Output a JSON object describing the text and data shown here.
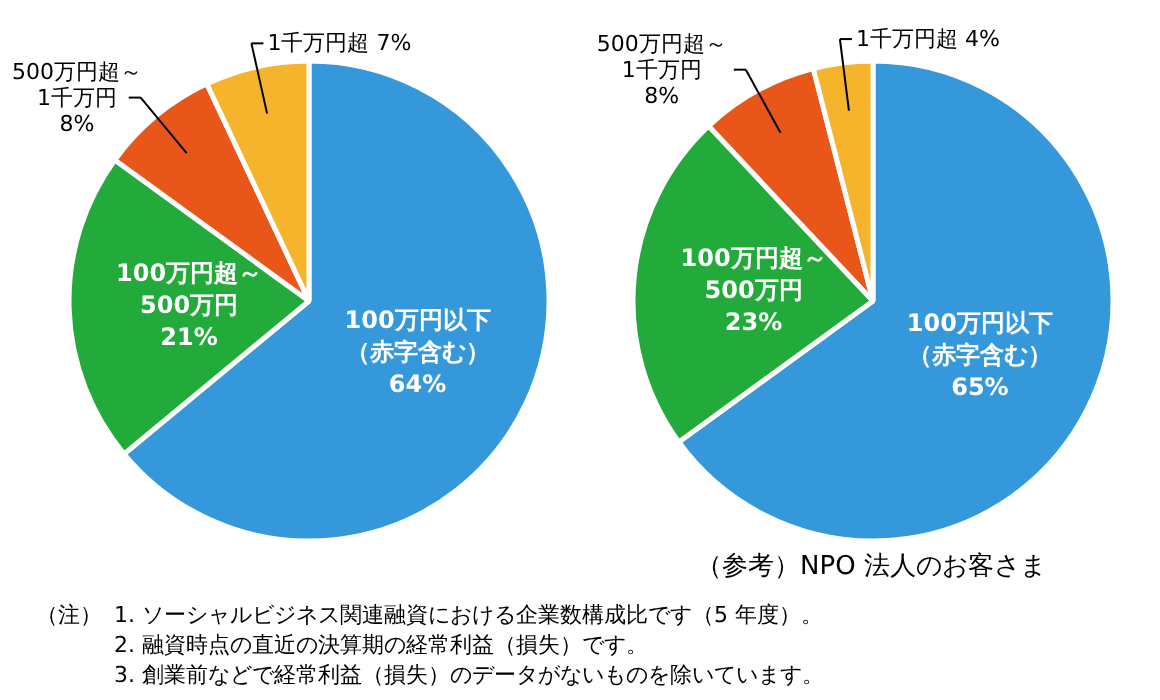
{
  "chart_data": [
    {
      "type": "pie",
      "categories": [
        "100万円以下（赤字含む）",
        "100万円超～500万円",
        "500万円超～1千万円",
        "1千万円超"
      ],
      "values": [
        64,
        21,
        8,
        7
      ],
      "value_labels": [
        "64%",
        "21%",
        "8%",
        "7%"
      ],
      "colors": [
        "#3498db",
        "#22aa3a",
        "#e8561a",
        "#f6b42d"
      ],
      "annotations": [
        "（注）",
        "1.  ソーシャルビジネス関連融資における企業数構成比です（5 年度）。",
        "2.  融資時点の直近の決算期の経常利益（損失）です。",
        "3.  創業前などで経常利益（損失）のデータがないものを除いています。"
      ]
    },
    {
      "type": "pie",
      "title": "（参考）NPO 法人のお客さま",
      "categories": [
        "100万円以下（赤字含む）",
        "100万円超～500万円",
        "500万円超～1千万円",
        "1千万円超"
      ],
      "values": [
        65,
        23,
        8,
        4
      ],
      "value_labels": [
        "65%",
        "23%",
        "8%",
        "4%"
      ],
      "colors": [
        "#3498db",
        "#22aa3a",
        "#e8561a",
        "#f6b42d"
      ]
    }
  ]
}
